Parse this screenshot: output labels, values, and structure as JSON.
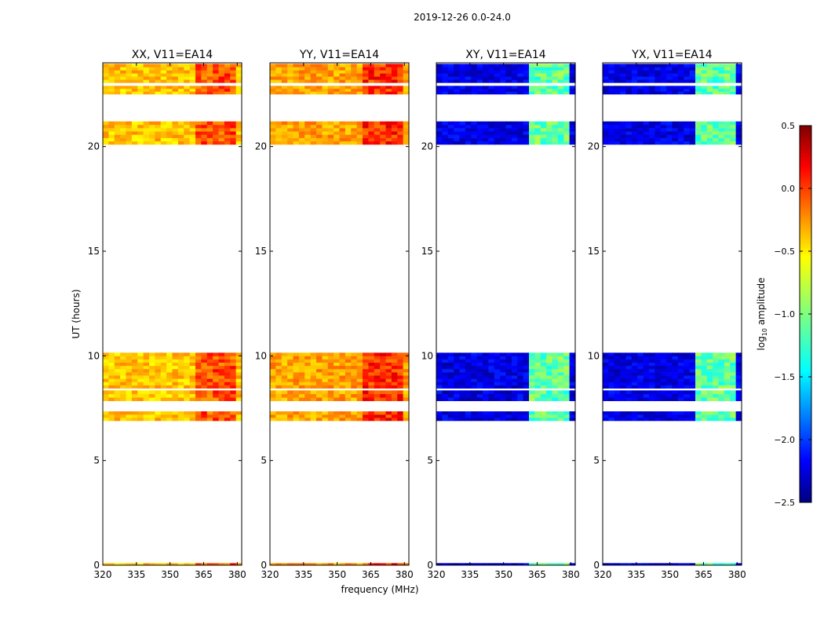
{
  "figure": {
    "suptitle": "2019-12-26 0.0-24.0",
    "ylabel": "UT (hours)",
    "xlabel": "frequency (MHz)"
  },
  "colors": {
    "jet": [
      "#00007f",
      "#0000ff",
      "#007fff",
      "#00ffff",
      "#7fff7f",
      "#ffff00",
      "#ff7f00",
      "#ff0000",
      "#7f0000"
    ],
    "background": "#ffffff",
    "axes": "#000000"
  },
  "chart_data": {
    "type": "heatmap",
    "xlim": [
      320,
      382
    ],
    "ylim": [
      0,
      24
    ],
    "xticks": [
      320,
      335,
      350,
      365,
      380
    ],
    "yticks": [
      0,
      5,
      10,
      15,
      20
    ],
    "observed_time_blocks_hours": [
      [
        0.0,
        0.1
      ],
      [
        6.9,
        7.35
      ],
      [
        7.85,
        8.35
      ],
      [
        8.45,
        10.15
      ],
      [
        20.1,
        21.2
      ],
      [
        22.5,
        22.9
      ],
      [
        23.05,
        23.95
      ]
    ],
    "bright_channel_region_MHz": [
      362,
      380
    ],
    "panels": [
      {
        "title": "XX, V11=EA14",
        "pol": "XX",
        "base_log_amp": -0.45,
        "region_log_amp": -0.1
      },
      {
        "title": "YY, V11=EA14",
        "pol": "YY",
        "base_log_amp": -0.35,
        "region_log_amp": 0.0
      },
      {
        "title": "XY, V11=EA14",
        "pol": "XY",
        "base_log_amp": -2.2,
        "region_log_amp": -1.1
      },
      {
        "title": "YX, V11=EA14",
        "pol": "YX",
        "base_log_amp": -2.2,
        "region_log_amp": -1.1
      }
    ],
    "colorbar": {
      "label": "log10 amplitude",
      "label_main": "log",
      "label_sub": "10",
      "label_rest": " amplitude",
      "range": [
        -2.5,
        0.5
      ],
      "ticks": [
        "0.5",
        "0.0",
        "−0.5",
        "−1.0",
        "−1.5",
        "−2.0",
        "−2.5"
      ],
      "tick_values": [
        0.5,
        0.0,
        -0.5,
        -1.0,
        -1.5,
        -2.0,
        -2.5
      ]
    }
  }
}
